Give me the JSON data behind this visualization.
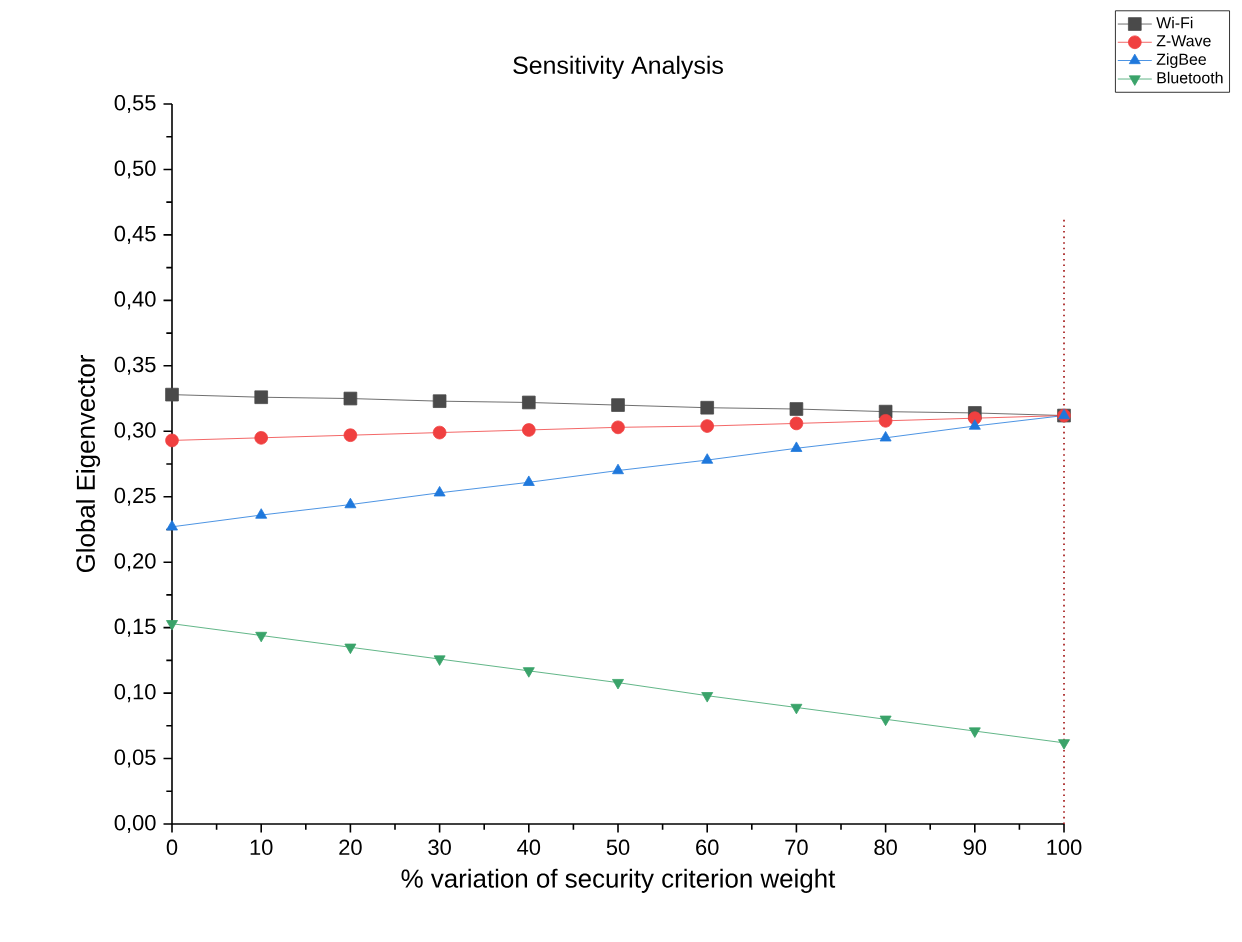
{
  "chart_data": {
    "type": "line",
    "title": "Sensitivity Analysis",
    "xlabel": "% variation of security criterion weight",
    "ylabel": "Global Eigenvector",
    "x": [
      0,
      10,
      20,
      30,
      40,
      50,
      60,
      70,
      80,
      90,
      100
    ],
    "series": [
      {
        "name": "Wi-Fi",
        "color": "#4a4a4a",
        "marker": "square",
        "values": [
          0.328,
          0.326,
          0.325,
          0.323,
          0.322,
          0.32,
          0.318,
          0.317,
          0.315,
          0.314,
          0.312
        ]
      },
      {
        "name": "Z-Wave",
        "color": "#f04040",
        "marker": "circle",
        "values": [
          0.293,
          0.295,
          0.297,
          0.299,
          0.301,
          0.303,
          0.304,
          0.306,
          0.308,
          0.31,
          0.312
        ]
      },
      {
        "name": "ZigBee",
        "color": "#1f78dc",
        "marker": "triangle",
        "values": [
          0.227,
          0.236,
          0.244,
          0.253,
          0.261,
          0.27,
          0.278,
          0.287,
          0.295,
          0.304,
          0.312
        ]
      },
      {
        "name": "Bluetooth",
        "color": "#3aa36a",
        "marker": "triangle-down",
        "values": [
          0.153,
          0.144,
          0.135,
          0.126,
          0.117,
          0.108,
          0.098,
          0.089,
          0.08,
          0.071,
          0.062
        ]
      }
    ],
    "xlim": [
      0,
      100
    ],
    "xticks": [
      0,
      10,
      20,
      30,
      40,
      50,
      60,
      70,
      80,
      90,
      100
    ],
    "ylim": [
      0,
      0.55
    ],
    "yticks": [
      {
        "value": 0,
        "label": "0,00"
      },
      {
        "value": 0.05,
        "label": "0,05"
      },
      {
        "value": 0.1,
        "label": "0,10"
      },
      {
        "value": 0.15,
        "label": "0,15"
      },
      {
        "value": 0.2,
        "label": "0,20"
      },
      {
        "value": 0.25,
        "label": "0,25"
      },
      {
        "value": 0.3,
        "label": "0,30"
      },
      {
        "value": 0.35,
        "label": "0,35"
      },
      {
        "value": 0.4,
        "label": "0,40"
      },
      {
        "value": 0.45,
        "label": "0,45"
      },
      {
        "value": 0.5,
        "label": "0,50"
      },
      {
        "value": 0.55,
        "label": "0,55"
      }
    ],
    "ref_lines": [
      {
        "axis": "x",
        "value": 100,
        "color": "#a01010",
        "line_style": "dotted"
      }
    ],
    "grid": false,
    "legend": "top right",
    "line_style": "solid"
  }
}
